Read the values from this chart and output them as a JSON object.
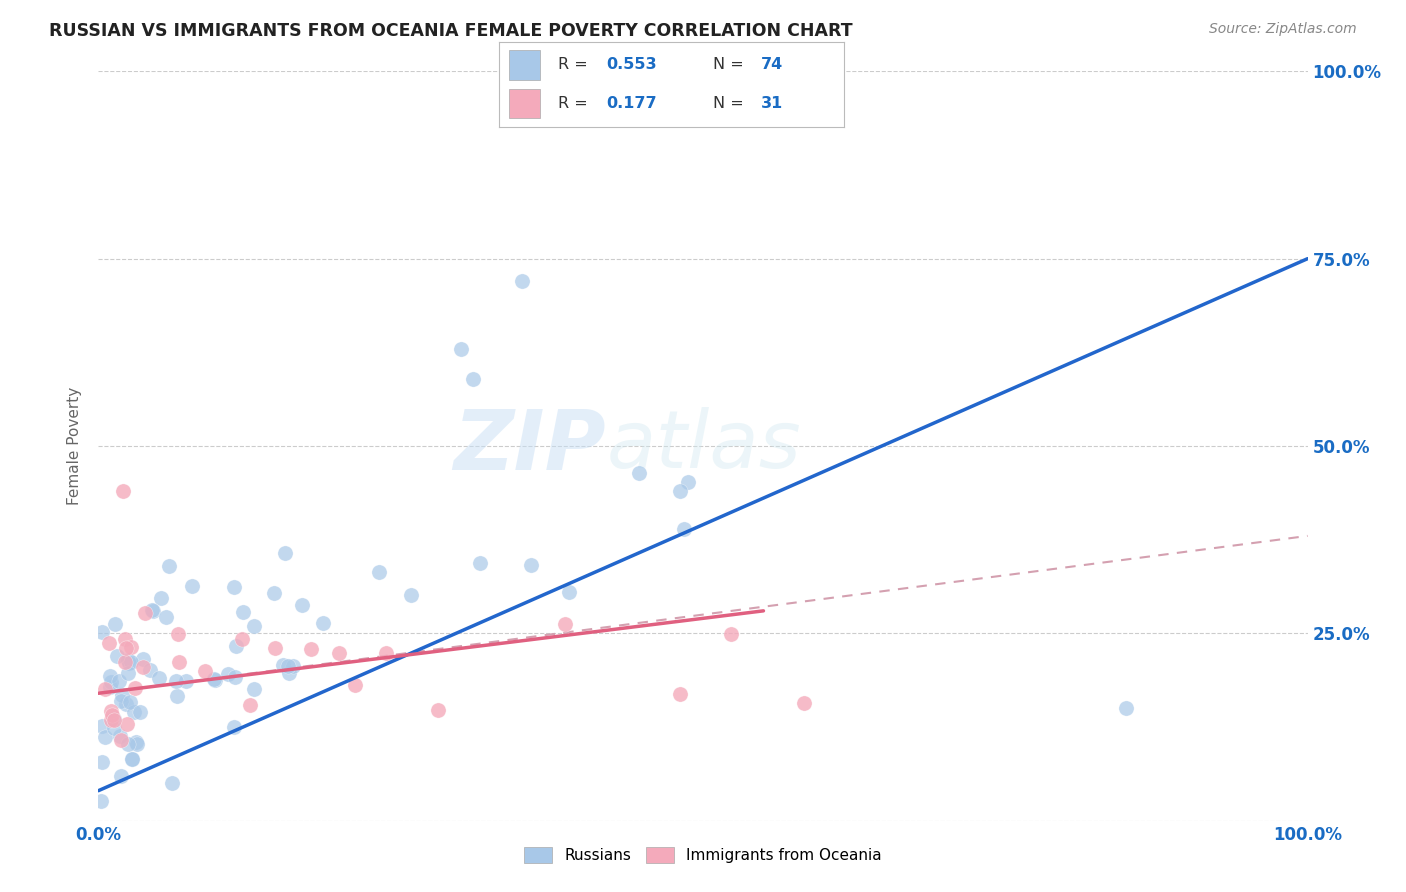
{
  "title": "RUSSIAN VS IMMIGRANTS FROM OCEANIA FEMALE POVERTY CORRELATION CHART",
  "source": "Source: ZipAtlas.com",
  "ylabel": "Female Poverty",
  "xlim": [
    0.0,
    1.0
  ],
  "ylim": [
    0.0,
    1.0
  ],
  "russian_color": "#a8c8e8",
  "russian_line_color": "#2266cc",
  "oceania_color": "#f4aabb",
  "oceania_line_color": "#e06080",
  "oceania_dash_color": "#e0a0b0",
  "russian_R": 0.553,
  "russian_N": 74,
  "oceania_R": 0.177,
  "oceania_N": 31,
  "watermark": "ZIPatlas",
  "legend_russians": "Russians",
  "legend_oceania": "Immigrants from Oceania",
  "background_color": "#ffffff",
  "grid_color": "#cccccc",
  "title_color": "#333333",
  "axis_label_color": "#666666",
  "tick_label_color": "#1a6cc4"
}
